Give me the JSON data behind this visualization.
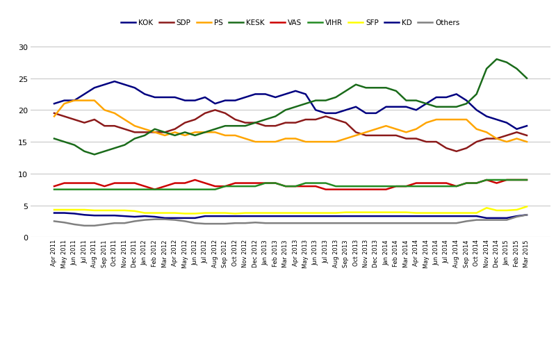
{
  "parties": [
    "KOK",
    "SDP",
    "PS",
    "KESK",
    "VAS",
    "VIHR",
    "SFP",
    "KD",
    "Others"
  ],
  "colors": [
    "#00008B",
    "#8B0000",
    "#FFA500",
    "#006400",
    "#FF0000",
    "#00AA00",
    "#FFFF00",
    "#00008B",
    "#808080"
  ],
  "legend_colors": [
    "#00008B",
    "#8B0000",
    "#FFA500",
    "#006400",
    "#FF0000",
    "#00AA00",
    "#FFFF00",
    "#000080",
    "#808080"
  ],
  "x_labels": [
    "Apr 2011",
    "May 2011",
    "Jun 2011",
    "Jul 2011",
    "Aug 2011",
    "Sep 2011",
    "Oct 2011",
    "Nov 2011",
    "Dec 2011",
    "Jan 2012",
    "Feb 2012",
    "Mar 2012",
    "Apr 2012",
    "May 2012",
    "Jun 2012",
    "Jul 2012",
    "Aug 2012",
    "Sep 2012",
    "Oct 2012",
    "Nov 2012",
    "Dec 2012",
    "Jan 2013",
    "Feb 2013",
    "Mar 2013",
    "Apr 2013",
    "May 2013",
    "Jun 2013",
    "Jul 2013",
    "Aug 2013",
    "Sep 2013",
    "Oct 2013",
    "Nov 2013",
    "Dec 2013",
    "Jan 2014",
    "Feb 2014",
    "Mar 2014",
    "Apr 2014",
    "May 2014",
    "Jun 2014",
    "Jul 2014",
    "Aug 2014",
    "Sep 2014",
    "Oct 2014",
    "Nov 2014",
    "Dec 2014",
    "Jan 2015",
    "Feb 2015",
    "Mar 2015"
  ],
  "data": {
    "KOK": [
      21.0,
      21.5,
      21.5,
      22.5,
      23.5,
      24.0,
      24.5,
      24.0,
      23.5,
      22.5,
      22.0,
      22.0,
      22.0,
      21.5,
      21.5,
      22.0,
      21.0,
      21.5,
      21.5,
      22.0,
      22.5,
      22.5,
      22.0,
      22.5,
      23.0,
      22.5,
      20.0,
      19.5,
      19.5,
      20.0,
      20.5,
      19.5,
      19.5,
      20.5,
      20.5,
      20.5,
      20.0,
      21.0,
      22.0,
      22.0,
      22.5,
      21.5,
      20.0,
      19.0,
      18.5,
      18.0,
      17.0,
      17.5
    ],
    "SDP": [
      19.5,
      19.0,
      18.5,
      18.0,
      18.5,
      17.5,
      17.5,
      17.0,
      16.5,
      16.5,
      16.5,
      16.5,
      17.0,
      18.0,
      18.5,
      19.5,
      20.0,
      19.5,
      18.5,
      18.0,
      18.0,
      17.5,
      17.5,
      18.0,
      18.0,
      18.5,
      18.5,
      19.0,
      18.5,
      18.0,
      16.5,
      16.0,
      16.0,
      16.0,
      16.0,
      15.5,
      15.5,
      15.0,
      15.0,
      14.0,
      13.5,
      14.0,
      15.0,
      15.5,
      15.5,
      16.0,
      16.5,
      16.0
    ],
    "PS": [
      19.0,
      21.0,
      21.5,
      21.5,
      21.5,
      20.0,
      19.5,
      18.5,
      17.5,
      17.0,
      16.5,
      16.0,
      16.5,
      16.0,
      16.5,
      16.5,
      16.5,
      16.0,
      16.0,
      15.5,
      15.0,
      15.0,
      15.0,
      15.5,
      15.5,
      15.0,
      15.0,
      15.0,
      15.0,
      15.5,
      16.0,
      16.5,
      17.0,
      17.5,
      17.0,
      16.5,
      17.0,
      18.0,
      18.5,
      18.5,
      18.5,
      18.5,
      17.0,
      16.5,
      15.5,
      15.0,
      15.5,
      15.0
    ],
    "KESK": [
      15.5,
      15.0,
      14.5,
      13.5,
      13.0,
      13.5,
      14.0,
      14.5,
      15.5,
      16.0,
      17.0,
      16.5,
      16.0,
      16.5,
      16.0,
      16.5,
      17.0,
      17.5,
      17.5,
      17.5,
      18.0,
      18.5,
      19.0,
      20.0,
      20.5,
      21.0,
      21.5,
      21.5,
      22.0,
      23.0,
      24.0,
      23.5,
      23.5,
      23.5,
      23.0,
      21.5,
      21.5,
      21.0,
      20.5,
      20.5,
      20.5,
      21.0,
      22.5,
      26.5,
      28.0,
      27.5,
      26.5,
      25.0
    ],
    "VAS": [
      8.0,
      8.5,
      8.5,
      8.5,
      8.5,
      8.0,
      8.5,
      8.5,
      8.5,
      8.0,
      7.5,
      8.0,
      8.5,
      8.5,
      9.0,
      8.5,
      8.0,
      8.0,
      8.5,
      8.5,
      8.5,
      8.5,
      8.5,
      8.0,
      8.0,
      8.0,
      8.0,
      7.5,
      7.5,
      7.5,
      7.5,
      7.5,
      7.5,
      7.5,
      8.0,
      8.0,
      8.5,
      8.5,
      8.5,
      8.5,
      8.0,
      8.5,
      8.5,
      9.0,
      8.5,
      9.0,
      9.0,
      9.0
    ],
    "VIHR": [
      7.5,
      7.5,
      7.5,
      7.5,
      7.5,
      7.5,
      7.5,
      7.5,
      7.5,
      7.5,
      7.5,
      7.5,
      7.5,
      7.5,
      7.5,
      7.5,
      7.5,
      8.0,
      8.0,
      8.0,
      8.0,
      8.5,
      8.5,
      8.0,
      8.0,
      8.5,
      8.5,
      8.5,
      8.0,
      8.0,
      8.0,
      8.0,
      8.0,
      8.0,
      8.0,
      8.0,
      8.0,
      8.0,
      8.0,
      8.0,
      8.0,
      8.5,
      8.5,
      9.0,
      9.0,
      9.0,
      9.0,
      9.0
    ],
    "SFP": [
      4.3,
      4.3,
      4.3,
      4.3,
      4.2,
      4.2,
      4.2,
      4.2,
      4.1,
      3.8,
      3.8,
      3.8,
      3.8,
      3.7,
      3.7,
      3.8,
      3.8,
      3.8,
      3.7,
      3.8,
      3.8,
      3.8,
      3.8,
      3.8,
      3.8,
      3.8,
      3.8,
      3.8,
      3.8,
      3.9,
      3.9,
      3.9,
      3.9,
      3.9,
      3.9,
      3.9,
      3.8,
      3.8,
      3.8,
      3.8,
      3.8,
      3.8,
      3.8,
      4.6,
      4.2,
      4.2,
      4.3,
      4.8
    ],
    "KD": [
      3.8,
      3.8,
      3.7,
      3.5,
      3.4,
      3.4,
      3.4,
      3.3,
      3.2,
      3.3,
      3.2,
      3.0,
      3.0,
      3.0,
      3.0,
      3.3,
      3.3,
      3.3,
      3.3,
      3.3,
      3.3,
      3.3,
      3.3,
      3.3,
      3.3,
      3.3,
      3.3,
      3.3,
      3.3,
      3.3,
      3.3,
      3.3,
      3.3,
      3.3,
      3.3,
      3.3,
      3.3,
      3.3,
      3.3,
      3.3,
      3.3,
      3.3,
      3.3,
      3.0,
      3.0,
      3.0,
      3.3,
      3.5
    ],
    "Others": [
      2.5,
      2.3,
      2.0,
      1.8,
      1.8,
      2.0,
      2.2,
      2.2,
      2.5,
      2.7,
      2.8,
      2.8,
      2.7,
      2.5,
      2.2,
      2.1,
      2.1,
      2.1,
      2.2,
      2.2,
      2.3,
      2.2,
      2.2,
      2.2,
      2.2,
      2.2,
      2.2,
      2.2,
      2.2,
      2.2,
      2.2,
      2.2,
      2.2,
      2.2,
      2.2,
      2.2,
      2.2,
      2.2,
      2.2,
      2.2,
      2.2,
      2.5,
      2.7,
      2.7,
      2.7,
      2.7,
      3.2,
      3.5
    ]
  },
  "ylim": [
    0,
    31
  ],
  "yticks": [
    0,
    5,
    10,
    15,
    20,
    25,
    30
  ],
  "bg_color": "#FFFFFF",
  "grid_color": "#C8C8C8",
  "linewidth": 1.8
}
